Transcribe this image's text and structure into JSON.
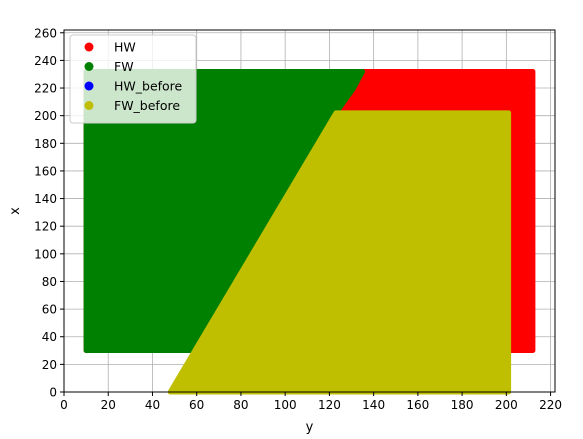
{
  "chart_data": {
    "type": "scatter",
    "title": "",
    "xlabel": "y",
    "ylabel": "x",
    "xlim": [
      0,
      222
    ],
    "ylim": [
      0,
      262
    ],
    "xticks": [
      "0",
      "20",
      "40",
      "60",
      "80",
      "100",
      "120",
      "140",
      "160",
      "180",
      "200",
      "220"
    ],
    "yticks": [
      "0",
      "20",
      "40",
      "60",
      "80",
      "100",
      "120",
      "140",
      "160",
      "180",
      "200",
      "220",
      "240",
      "260"
    ],
    "grid": true,
    "legend_position": "top-left",
    "series": [
      {
        "name": "HW",
        "color": "#ff0000",
        "region": [
          [
            10,
            30
          ],
          [
            10,
            232
          ],
          [
            212,
            232
          ],
          [
            212,
            30
          ]
        ]
      },
      {
        "name": "FW",
        "color": "#008000",
        "region": [
          [
            10,
            30
          ],
          [
            10,
            232
          ],
          [
            135,
            232
          ],
          [
            131,
            220
          ],
          [
            123,
            202
          ],
          [
            64,
            30
          ]
        ]
      },
      {
        "name": "HW_before",
        "color": "#0000ff",
        "region": []
      },
      {
        "name": "FW_before",
        "color": "#bfbf00",
        "region": [
          [
            48,
            0
          ],
          [
            123,
            202
          ],
          [
            201,
            202
          ],
          [
            201,
            0
          ]
        ]
      }
    ]
  }
}
